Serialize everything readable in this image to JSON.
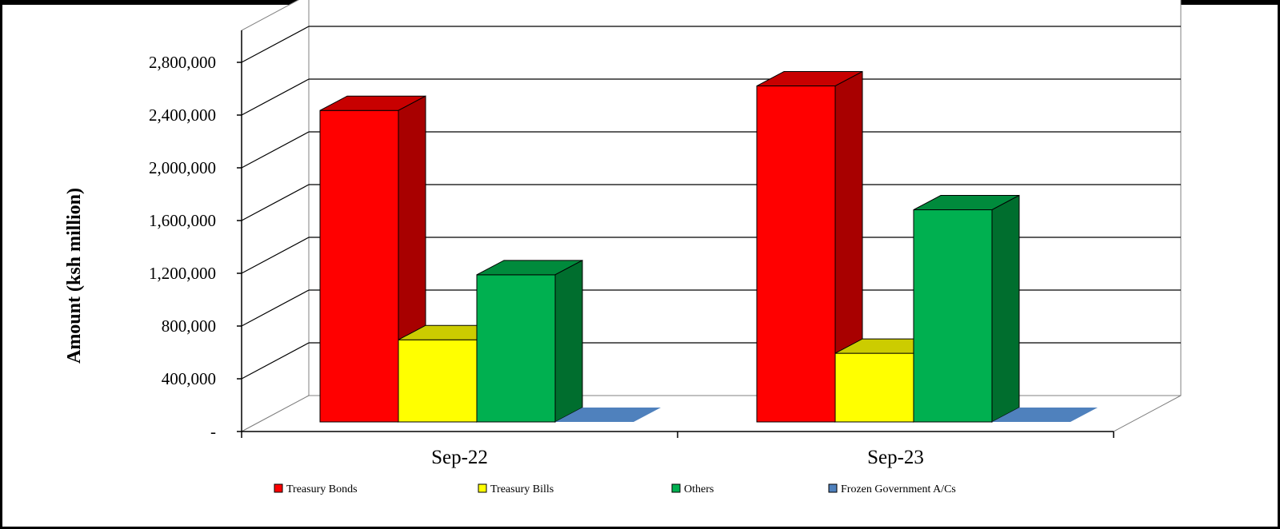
{
  "chart_data": {
    "type": "bar",
    "title": "",
    "xlabel": "",
    "ylabel": "Amount  (ksh million)",
    "categories": [
      "Sep-22",
      "Sep-23"
    ],
    "ylim": [
      0,
      2800000
    ],
    "yticks": [
      0,
      400000,
      800000,
      1200000,
      1600000,
      2000000,
      2400000,
      2800000
    ],
    "ytick_labels": [
      "-",
      "400,000",
      "800,000",
      "1,200,000",
      "1,600,000",
      "2,000,000",
      "2,400,000",
      "2,800,000"
    ],
    "series": [
      {
        "name": "Treasury Bonds",
        "values": [
          2540000,
          2740000
        ],
        "color": "#ff0000",
        "side_color": "#a80000",
        "top_color": "#c80000"
      },
      {
        "name": "Treasury Bills",
        "values": [
          670000,
          560000
        ],
        "color": "#ffff00",
        "side_color": "#a6a600",
        "top_color": "#cccc00"
      },
      {
        "name": "Others",
        "values": [
          1200000,
          1730000
        ],
        "color": "#00b050",
        "side_color": "#006e2e",
        "top_color": "#008a3c"
      },
      {
        "name": "Frozen Government A/Cs",
        "values": [
          0,
          0
        ],
        "color": "#4f81bd",
        "side_color": "#35577f",
        "top_color": "#4f81bd"
      }
    ],
    "grid": true,
    "legend_position": "bottom",
    "style": "3d-clustered-column"
  }
}
